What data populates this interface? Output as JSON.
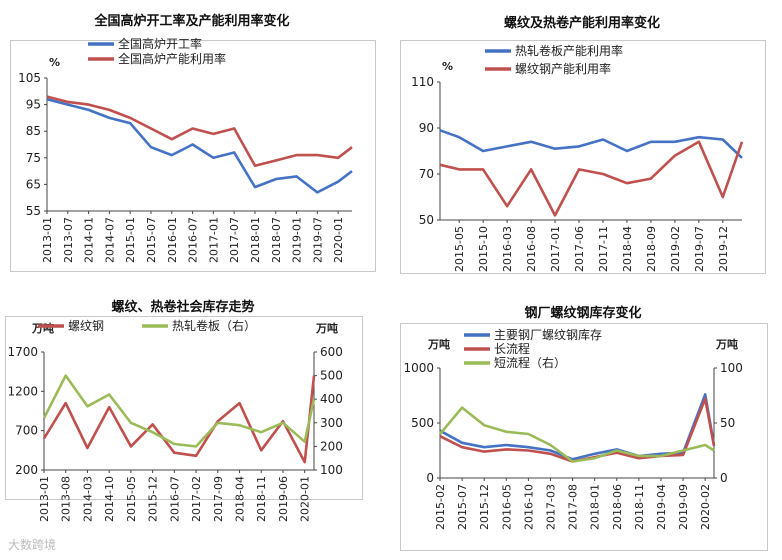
{
  "watermark": "大数跨境",
  "chart_data": [
    {
      "type": "line",
      "title": "全国高炉开工率及产能利用率变化",
      "yunit": "%",
      "ylim": [
        55,
        105
      ],
      "yticks": [
        55,
        65,
        75,
        85,
        95,
        105
      ],
      "x_ticks": [
        "2013-01",
        "2013-07",
        "2014-01",
        "2014-07",
        "2015-01",
        "2015-07",
        "2016-01",
        "2016-07",
        "2017-01",
        "2017-07",
        "2018-01",
        "2018-07",
        "2019-01",
        "2019-07",
        "2020-01"
      ],
      "x": [
        "2013-01",
        "2013-07",
        "2014-01",
        "2014-07",
        "2015-01",
        "2015-07",
        "2016-01",
        "2016-07",
        "2017-01",
        "2017-07",
        "2018-01",
        "2018-07",
        "2019-01",
        "2019-07",
        "2020-01",
        "2020-05"
      ],
      "legend_position": "top-center",
      "series": [
        {
          "name": "全国高炉开工率",
          "color": "#4472C4",
          "values": [
            97,
            95,
            93,
            90,
            88,
            79,
            76,
            80,
            75,
            77,
            64,
            67,
            68,
            62,
            66,
            70
          ]
        },
        {
          "name": "全国高炉产能利用率",
          "color": "#C0504D",
          "values": [
            98,
            96,
            95,
            93,
            90,
            86,
            82,
            86,
            84,
            86,
            72,
            74,
            76,
            76,
            75,
            79
          ]
        }
      ]
    },
    {
      "type": "line",
      "title": "螺纹及热卷产能利用率变化",
      "yunit": "%",
      "ylim": [
        50,
        110
      ],
      "yticks": [
        50,
        70,
        90,
        110
      ],
      "x_ticks": [
        "2015-05",
        "2015-10",
        "2016-03",
        "2016-08",
        "2017-01",
        "2017-06",
        "2017-11",
        "2018-04",
        "2018-09",
        "2019-02",
        "2019-07",
        "2019-12"
      ],
      "x": [
        "2015-01",
        "2015-05",
        "2015-10",
        "2016-03",
        "2016-08",
        "2017-01",
        "2017-06",
        "2017-11",
        "2018-04",
        "2018-09",
        "2019-02",
        "2019-07",
        "2019-12",
        "2020-04"
      ],
      "legend_position": "top-center",
      "series": [
        {
          "name": "热轧卷板产能利用率",
          "color": "#4472C4",
          "values": [
            89,
            86,
            80,
            82,
            84,
            81,
            82,
            85,
            80,
            84,
            84,
            86,
            85,
            77
          ]
        },
        {
          "name": "螺纹钢产能利用率",
          "color": "#C0504D",
          "values": [
            74,
            72,
            72,
            56,
            72,
            52,
            72,
            70,
            66,
            68,
            78,
            84,
            60,
            84
          ]
        }
      ]
    },
    {
      "type": "line",
      "title": "螺纹、热卷社会库存走势",
      "yunit_left": "万吨",
      "yunit_right": "万吨",
      "ylim_left": [
        200,
        1700
      ],
      "yticks_left": [
        200,
        700,
        1200,
        1700
      ],
      "ylim_right": [
        100,
        600
      ],
      "yticks_right": [
        100,
        200,
        300,
        400,
        500,
        600
      ],
      "x_ticks": [
        "2013-01",
        "2013-08",
        "2014-03",
        "2014-10",
        "2015-05",
        "2015-12",
        "2016-07",
        "2017-02",
        "2017-09",
        "2018-04",
        "2018-11",
        "2019-06",
        "2020-01"
      ],
      "x": [
        "2013-01",
        "2013-08",
        "2014-03",
        "2014-10",
        "2015-05",
        "2015-12",
        "2016-07",
        "2017-02",
        "2017-09",
        "2018-04",
        "2018-11",
        "2019-06",
        "2020-01",
        "2020-04"
      ],
      "legend_position": "top",
      "series": [
        {
          "name": "螺纹钢",
          "axis": "left",
          "color": "#C0504D",
          "values": [
            600,
            1050,
            480,
            1000,
            500,
            780,
            420,
            380,
            820,
            1050,
            450,
            820,
            300,
            1400
          ]
        },
        {
          "name": "热轧卷板（右）",
          "axis": "right",
          "color": "#9BBB59",
          "values": [
            320,
            500,
            370,
            420,
            300,
            260,
            210,
            200,
            300,
            290,
            260,
            300,
            220,
            400
          ]
        }
      ]
    },
    {
      "type": "line",
      "title": "钢厂螺纹钢库存变化",
      "yunit_left": "万吨",
      "yunit_right": "万吨",
      "ylim_left": [
        0,
        1000
      ],
      "yticks_left": [
        0,
        500,
        1000
      ],
      "ylim_right": [
        0,
        100
      ],
      "yticks_right": [
        0,
        50,
        100
      ],
      "x_ticks": [
        "2015-02",
        "2015-07",
        "2015-12",
        "2016-05",
        "2016-10",
        "2017-03",
        "2017-08",
        "2018-01",
        "2018-06",
        "2018-11",
        "2019-04",
        "2019-09",
        "2020-02"
      ],
      "x": [
        "2015-02",
        "2015-07",
        "2015-12",
        "2016-05",
        "2016-10",
        "2017-03",
        "2017-08",
        "2018-01",
        "2018-06",
        "2018-11",
        "2019-04",
        "2019-09",
        "2020-02",
        "2020-04"
      ],
      "legend_position": "top",
      "series": [
        {
          "name": "主要钢厂螺纹钢库存",
          "axis": "left",
          "color": "#4472C4",
          "values": [
            430,
            320,
            280,
            300,
            280,
            250,
            170,
            220,
            260,
            200,
            220,
            230,
            760,
            300
          ]
        },
        {
          "name": "长流程",
          "axis": "left",
          "color": "#C0504D",
          "values": [
            380,
            280,
            240,
            260,
            250,
            220,
            150,
            190,
            230,
            180,
            200,
            210,
            720,
            290
          ]
        },
        {
          "name": "短流程（右）",
          "axis": "right",
          "color": "#9BBB59",
          "values": [
            40,
            64,
            48,
            42,
            40,
            30,
            15,
            18,
            25,
            20,
            20,
            25,
            30,
            25
          ]
        }
      ]
    }
  ]
}
